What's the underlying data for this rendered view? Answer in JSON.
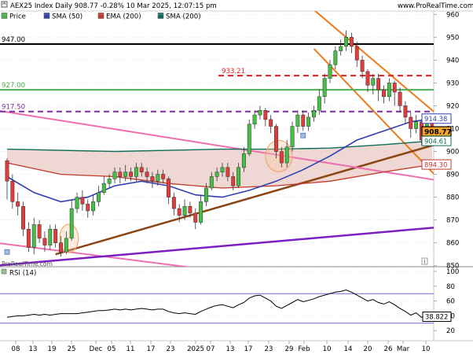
{
  "header": {
    "title": "AEX25 Index Daily 908.77 -0.28% 10 Mar 2025, 12:07:15 pm",
    "site": "www.ProRealTime.com",
    "watermark": "ProRealTime.com"
  },
  "legend": [
    {
      "label": "Price",
      "color": "#4caf50"
    },
    {
      "label": "SMA (50)",
      "color": "#2f3fb0"
    },
    {
      "label": "EMA (200)",
      "color": "#c0392b"
    },
    {
      "label": "SMA (200)",
      "color": "#0f6e58"
    }
  ],
  "colors": {
    "up": "#43c043",
    "down": "#e23b3b",
    "sma50": "#2f3fb0",
    "ema200": "#c0392b",
    "sma200": "#0f6e58",
    "channel": "#f07a1a",
    "pink": "#ee6fb0",
    "purple": "#7a1fc0",
    "brown": "#8b4513",
    "level947": "#000000",
    "level933": "#e02020",
    "level927": "#4caf50",
    "level917": "#7b2fa0",
    "rsi": "#000000",
    "rsiBand": "#6a6ae0"
  },
  "chart_data": {
    "type": "candlestick",
    "y_range": [
      848,
      962
    ],
    "y_ticks": [
      850,
      860,
      870,
      880,
      890,
      900,
      910,
      920,
      930,
      940,
      950,
      960
    ],
    "x_ticks": [
      "08",
      "13",
      "19",
      "25",
      "Dec",
      "05",
      "11",
      "17",
      "23",
      "2025",
      "07",
      "13",
      "17",
      "23",
      "29",
      "Feb",
      "10",
      "14",
      "20",
      "26",
      "Mar",
      "10"
    ],
    "price_badges": [
      {
        "label": "914.38",
        "value": 914.38,
        "color": "#2f3fb0"
      },
      {
        "label": "908.77",
        "value": 908.77,
        "color": "#000000"
      },
      {
        "label": "904.61",
        "value": 904.61,
        "color": "#0f6e58"
      },
      {
        "label": "894.30",
        "value": 894.3,
        "color": "#c0392b"
      }
    ],
    "levels": [
      {
        "label": "947.00",
        "value": 947.0,
        "style": "solid",
        "color": "#000000"
      },
      {
        "label": "933.21",
        "value": 933.21,
        "style": "dashed",
        "color": "#e02020"
      },
      {
        "label": "927.00",
        "value": 927.0,
        "style": "solid",
        "color": "#4caf50"
      },
      {
        "label": "917.50",
        "value": 917.5,
        "style": "dashed",
        "color": "#7b2fa0"
      }
    ],
    "candles": [
      [
        896,
        887,
        897,
        879
      ],
      [
        887,
        878,
        890,
        875
      ],
      [
        878,
        876,
        882,
        872
      ],
      [
        876,
        866,
        878,
        863
      ],
      [
        866,
        858,
        869,
        856
      ],
      [
        858,
        868,
        871,
        855
      ],
      [
        868,
        862,
        870,
        860
      ],
      [
        862,
        859,
        865,
        856
      ],
      [
        859,
        866,
        868,
        857
      ],
      [
        866,
        860,
        868,
        858
      ],
      [
        860,
        856,
        863,
        854
      ],
      [
        856,
        862,
        865,
        855
      ],
      [
        862,
        875,
        879,
        861
      ],
      [
        875,
        880,
        882,
        873
      ],
      [
        880,
        877,
        883,
        874
      ],
      [
        877,
        874,
        879,
        871
      ],
      [
        874,
        878,
        881,
        872
      ],
      [
        878,
        882,
        885,
        876
      ],
      [
        882,
        886,
        889,
        881
      ],
      [
        886,
        888,
        890,
        884
      ],
      [
        888,
        891,
        893,
        886
      ],
      [
        891,
        889,
        893,
        886
      ],
      [
        889,
        891,
        894,
        887
      ],
      [
        891,
        889,
        893,
        887
      ],
      [
        889,
        893,
        895,
        887
      ],
      [
        893,
        891,
        895,
        889
      ],
      [
        891,
        889,
        893,
        886
      ],
      [
        889,
        887,
        891,
        884
      ],
      [
        887,
        890,
        892,
        885
      ],
      [
        890,
        888,
        892,
        886
      ],
      [
        888,
        880,
        889,
        877
      ],
      [
        880,
        875,
        882,
        872
      ],
      [
        875,
        872,
        877,
        869
      ],
      [
        872,
        876,
        879,
        870
      ],
      [
        876,
        873,
        878,
        871
      ],
      [
        873,
        869,
        875,
        866
      ],
      [
        869,
        878,
        881,
        868
      ],
      [
        878,
        884,
        886,
        876
      ],
      [
        884,
        889,
        891,
        883
      ],
      [
        889,
        891,
        893,
        887
      ],
      [
        891,
        893,
        895,
        889
      ],
      [
        893,
        889,
        895,
        887
      ],
      [
        889,
        885,
        891,
        883
      ],
      [
        885,
        893,
        895,
        884
      ],
      [
        893,
        899,
        902,
        891
      ],
      [
        899,
        912,
        914,
        898
      ],
      [
        912,
        916,
        918,
        910
      ],
      [
        916,
        918,
        920,
        914
      ],
      [
        918,
        914,
        919,
        911
      ],
      [
        914,
        911,
        916,
        908
      ],
      [
        911,
        900,
        912,
        897
      ],
      [
        900,
        895,
        902,
        893
      ],
      [
        895,
        902,
        905,
        893
      ],
      [
        902,
        911,
        913,
        900
      ],
      [
        911,
        916,
        918,
        908
      ],
      [
        916,
        911,
        918,
        909
      ],
      [
        911,
        915,
        917,
        909
      ],
      [
        915,
        918,
        920,
        913
      ],
      [
        918,
        924,
        927,
        916
      ],
      [
        924,
        932,
        934,
        921
      ],
      [
        932,
        938,
        940,
        930
      ],
      [
        938,
        944,
        946,
        936
      ],
      [
        944,
        946,
        949,
        942
      ],
      [
        946,
        950,
        953,
        944
      ],
      [
        950,
        946,
        952,
        943
      ],
      [
        946,
        940,
        948,
        937
      ],
      [
        940,
        935,
        942,
        932
      ],
      [
        935,
        929,
        936,
        926
      ],
      [
        929,
        932,
        934,
        925
      ],
      [
        932,
        927,
        934,
        922
      ],
      [
        927,
        924,
        929,
        921
      ],
      [
        924,
        930,
        932,
        922
      ],
      [
        930,
        926,
        931,
        920
      ],
      [
        926,
        920,
        928,
        917
      ],
      [
        920,
        915,
        922,
        912
      ],
      [
        915,
        910,
        917,
        906
      ],
      [
        910,
        913,
        916,
        908
      ],
      [
        913,
        905,
        914,
        903
      ],
      [
        905,
        914,
        916,
        902
      ],
      [
        914,
        908.77,
        915,
        906
      ]
    ],
    "sma50": [
      [
        0,
        889
      ],
      [
        5,
        882
      ],
      [
        10,
        878
      ],
      [
        15,
        880
      ],
      [
        20,
        885
      ],
      [
        25,
        887
      ],
      [
        30,
        885
      ],
      [
        35,
        881
      ],
      [
        40,
        880
      ],
      [
        45,
        883
      ],
      [
        50,
        887
      ],
      [
        55,
        892
      ],
      [
        60,
        898
      ],
      [
        65,
        905
      ],
      [
        70,
        909
      ],
      [
        75,
        913
      ],
      [
        79,
        914.38
      ]
    ],
    "ema200": [
      [
        0,
        895
      ],
      [
        10,
        890
      ],
      [
        20,
        889
      ],
      [
        30,
        886
      ],
      [
        40,
        884
      ],
      [
        50,
        885
      ],
      [
        60,
        887
      ],
      [
        70,
        891
      ],
      [
        79,
        894.3
      ]
    ],
    "sma200": [
      [
        0,
        901
      ],
      [
        20,
        900
      ],
      [
        40,
        901
      ],
      [
        50,
        901
      ],
      [
        60,
        901.5
      ],
      [
        70,
        903
      ],
      [
        79,
        904.61
      ]
    ],
    "trendlines": [
      {
        "name": "channel-upper",
        "color": "#f07a1a",
        "width": 2,
        "p1": [
          57,
          962
        ],
        "p2": [
          80,
          916
        ]
      },
      {
        "name": "channel-lower",
        "color": "#f07a1a",
        "width": 2,
        "p1": [
          57,
          945
        ],
        "p2": [
          81,
          886
        ]
      },
      {
        "name": "brown-support",
        "color": "#8b4513",
        "width": 2.5,
        "p1": [
          9,
          855
        ],
        "p2": [
          81,
          904
        ]
      },
      {
        "name": "pink-upper",
        "color": "#ee6fb0",
        "width": 2,
        "p1": [
          -2,
          918
        ],
        "p2": [
          81,
          887
        ]
      },
      {
        "name": "pink-lower",
        "color": "#ee6fb0",
        "width": 2,
        "p1": [
          -2,
          860
        ],
        "p2": [
          35,
          849
        ]
      },
      {
        "name": "purple-support",
        "color": "#7a1fc0",
        "width": 2.5,
        "p1": [
          -2,
          850
        ],
        "p2": [
          81,
          867
        ]
      }
    ],
    "rsi": {
      "label": "RSI (14)",
      "value_label": "38.822",
      "levels": [
        70,
        30
      ],
      "y_ticks": [
        20,
        40,
        60,
        80,
        100
      ],
      "values": [
        38,
        39,
        40,
        40,
        41,
        42,
        41,
        42,
        41,
        42,
        43,
        43,
        43,
        43,
        44,
        45,
        46,
        47,
        47,
        48,
        49,
        48,
        49,
        48,
        49,
        50,
        49,
        48,
        49,
        49,
        46,
        44,
        43,
        44,
        43,
        42,
        46,
        49,
        52,
        54,
        55,
        53,
        51,
        55,
        58,
        64,
        67,
        68,
        64,
        60,
        53,
        50,
        54,
        58,
        62,
        59,
        61,
        63,
        66,
        68,
        70,
        72,
        73,
        75,
        72,
        68,
        64,
        60,
        62,
        58,
        56,
        59,
        55,
        50,
        46,
        41,
        44,
        38,
        42,
        38.8
      ]
    }
  }
}
